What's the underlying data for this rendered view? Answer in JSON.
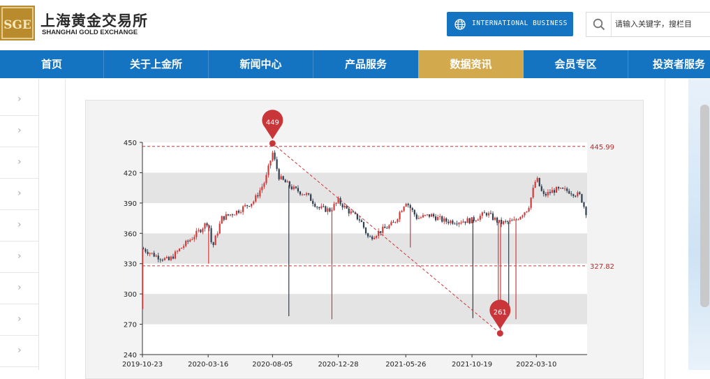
{
  "header": {
    "logo_cn": "上海黄金交易所",
    "logo_en": "SHANGHAI GOLD EXCHANGE",
    "intl_label": "INTERNATIONAL BUSINESS",
    "search_placeholder": "请输入关键字，搜栏目"
  },
  "nav": [
    {
      "label": "首页"
    },
    {
      "label": "关于上金所"
    },
    {
      "label": "新闻中心"
    },
    {
      "label": "产品服务"
    },
    {
      "label": "数据资讯",
      "active": true
    },
    {
      "label": "会员专区"
    },
    {
      "label": "投资者服务"
    }
  ],
  "colors": {
    "nav_blue": "#1474c2",
    "nav_active": "#d3a94e",
    "up": "#d23a3a",
    "down": "#2f3e4e",
    "marker": "#c8363a"
  },
  "chart_data": {
    "type": "candlestick",
    "y_ticks": [
      "240",
      "270",
      "300",
      "330",
      "360",
      "390",
      "420",
      "450"
    ],
    "ylim": [
      240,
      450
    ],
    "x_ticks": [
      "2019-10-23",
      "2020-03-16",
      "2020-08-05",
      "2020-12-28",
      "2021-05-26",
      "2021-10-19",
      "2022-03-10"
    ],
    "x_start": "2019-10-23",
    "x_end": "2022-06-30",
    "max_label": "449",
    "min_label": "261",
    "max_date": "2020-08-05",
    "min_date": "2021-12-20",
    "max_value": 449,
    "min_value": 261,
    "upper_line": {
      "value": 445.99,
      "label": "445.99"
    },
    "lower_line": {
      "value": 327.82,
      "label": "327.82"
    },
    "trend": [
      [
        "2019-10-23",
        345
      ],
      [
        "2019-11-20",
        338
      ],
      [
        "2019-12-20",
        333
      ],
      [
        "2020-01-15",
        345
      ],
      [
        "2020-02-20",
        360
      ],
      [
        "2020-03-16",
        372
      ],
      [
        "2020-03-25",
        345
      ],
      [
        "2020-04-15",
        375
      ],
      [
        "2020-05-20",
        382
      ],
      [
        "2020-06-25",
        392
      ],
      [
        "2020-07-20",
        412
      ],
      [
        "2020-08-05",
        440
      ],
      [
        "2020-08-20",
        415
      ],
      [
        "2020-09-20",
        404
      ],
      [
        "2020-10-20",
        398
      ],
      [
        "2020-11-15",
        385
      ],
      [
        "2020-12-10",
        383
      ],
      [
        "2020-12-28",
        392
      ],
      [
        "2021-01-20",
        382
      ],
      [
        "2021-02-15",
        373
      ],
      [
        "2021-03-05",
        355
      ],
      [
        "2021-03-30",
        362
      ],
      [
        "2021-04-30",
        370
      ],
      [
        "2021-05-26",
        392
      ],
      [
        "2021-06-20",
        375
      ],
      [
        "2021-07-20",
        378
      ],
      [
        "2021-08-20",
        372
      ],
      [
        "2021-09-20",
        372
      ],
      [
        "2021-10-19",
        373
      ],
      [
        "2021-11-20",
        380
      ],
      [
        "2021-12-20",
        370
      ],
      [
        "2022-01-20",
        372
      ],
      [
        "2022-02-20",
        385
      ],
      [
        "2022-03-10",
        415
      ],
      [
        "2022-03-25",
        397
      ],
      [
        "2022-04-20",
        403
      ],
      [
        "2022-05-20",
        402
      ],
      [
        "2022-06-15",
        397
      ],
      [
        "2022-06-30",
        378
      ]
    ],
    "spikes": [
      [
        "2019-10-24",
        285
      ],
      [
        "2020-03-17",
        330
      ],
      [
        "2020-09-10",
        278
      ],
      [
        "2020-12-14",
        275
      ],
      [
        "2021-06-05",
        346
      ],
      [
        "2021-10-21",
        276
      ],
      [
        "2021-12-16",
        280
      ],
      [
        "2021-12-21",
        262
      ],
      [
        "2022-01-08",
        280
      ],
      [
        "2022-01-24",
        275
      ]
    ]
  }
}
